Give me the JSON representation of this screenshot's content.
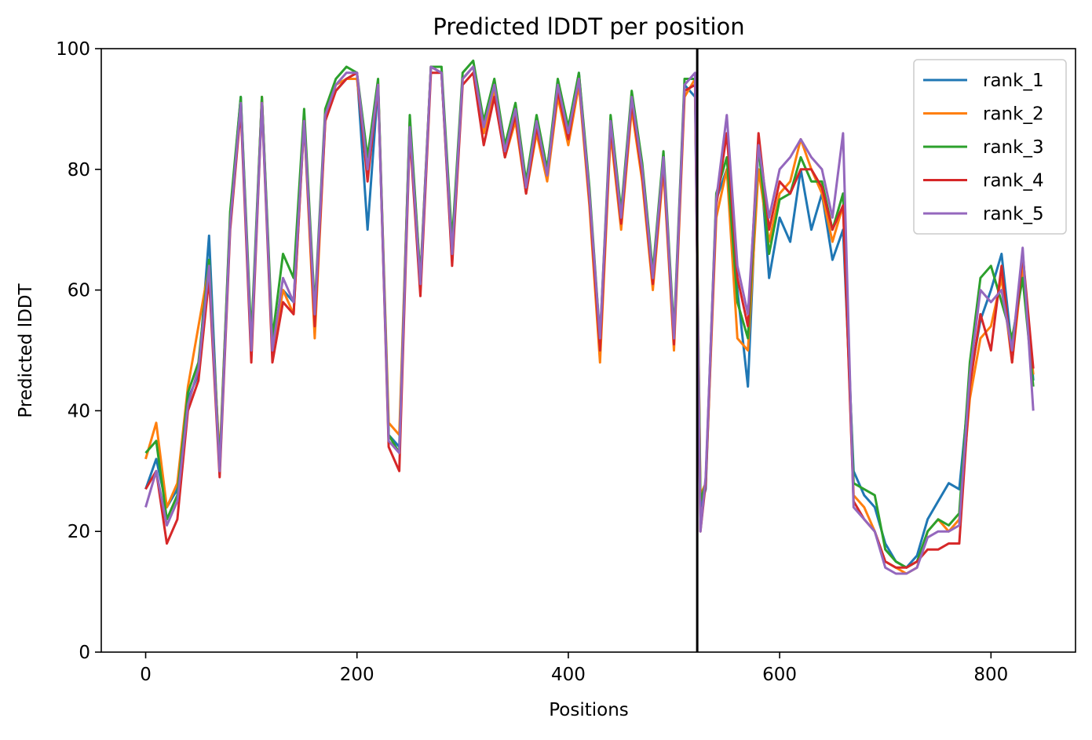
{
  "chart_data": {
    "type": "line",
    "title": "Predicted lDDT per position",
    "xlabel": "Positions",
    "ylabel": "Predicted lDDT",
    "xlim": [
      -42,
      880
    ],
    "ylim": [
      0,
      100
    ],
    "xticks": [
      0,
      200,
      400,
      600,
      800
    ],
    "yticks": [
      0,
      20,
      40,
      60,
      80,
      100
    ],
    "grid": false,
    "legend_position": "top-right",
    "vertical_line_x": 522,
    "x": [
      0,
      10,
      20,
      30,
      40,
      50,
      60,
      70,
      80,
      90,
      100,
      110,
      120,
      130,
      140,
      150,
      160,
      170,
      180,
      190,
      200,
      210,
      220,
      230,
      240,
      250,
      260,
      270,
      280,
      290,
      300,
      310,
      320,
      330,
      340,
      350,
      360,
      370,
      380,
      390,
      400,
      410,
      420,
      430,
      440,
      450,
      460,
      470,
      480,
      490,
      500,
      510,
      520,
      525,
      530,
      540,
      550,
      560,
      570,
      580,
      590,
      600,
      610,
      620,
      630,
      640,
      650,
      660,
      670,
      680,
      690,
      700,
      710,
      720,
      730,
      740,
      750,
      760,
      770,
      780,
      790,
      800,
      810,
      820,
      830,
      840
    ],
    "series": [
      {
        "name": "rank_1",
        "color": "#1f77b4",
        "values": [
          27,
          32,
          24,
          27,
          42,
          46,
          69,
          30,
          72,
          92,
          50,
          92,
          50,
          60,
          58,
          89,
          56,
          89,
          93,
          95,
          96,
          70,
          94,
          36,
          34,
          88,
          60,
          97,
          96,
          65,
          95,
          97,
          86,
          93,
          82,
          90,
          76,
          88,
          80,
          94,
          86,
          96,
          76,
          50,
          88,
          72,
          92,
          80,
          62,
          82,
          52,
          94,
          92,
          24,
          27,
          75,
          80,
          60,
          44,
          85,
          62,
          72,
          68,
          80,
          70,
          76,
          65,
          70,
          30,
          26,
          24,
          18,
          15,
          14,
          16,
          22,
          25,
          28,
          27,
          45,
          55,
          60,
          66,
          50,
          66,
          45
        ]
      },
      {
        "name": "rank_2",
        "color": "#ff7f0e",
        "values": [
          32,
          38,
          24,
          28,
          44,
          54,
          64,
          32,
          72,
          91,
          50,
          92,
          50,
          60,
          56,
          88,
          52,
          88,
          94,
          95,
          95,
          80,
          94,
          38,
          36,
          88,
          62,
          97,
          96,
          66,
          95,
          97,
          86,
          93,
          82,
          88,
          76,
          86,
          78,
          92,
          84,
          94,
          74,
          48,
          86,
          70,
          90,
          78,
          60,
          80,
          50,
          92,
          95,
          26,
          28,
          72,
          80,
          52,
          50,
          80,
          68,
          76,
          78,
          85,
          80,
          76,
          68,
          74,
          26,
          24,
          20,
          15,
          14,
          13,
          14,
          20,
          22,
          20,
          22,
          42,
          52,
          54,
          62,
          48,
          64,
          46
        ]
      },
      {
        "name": "rank_3",
        "color": "#2ca02c",
        "values": [
          33,
          35,
          22,
          26,
          43,
          48,
          65,
          31,
          73,
          92,
          52,
          92,
          52,
          66,
          62,
          90,
          57,
          90,
          95,
          97,
          96,
          82,
          95,
          36,
          33,
          89,
          62,
          97,
          97,
          68,
          96,
          98,
          88,
          95,
          84,
          91,
          78,
          89,
          80,
          95,
          87,
          96,
          77,
          52,
          89,
          73,
          93,
          81,
          63,
          83,
          53,
          95,
          95,
          25,
          28,
          76,
          82,
          58,
          52,
          84,
          66,
          75,
          76,
          82,
          78,
          78,
          70,
          76,
          28,
          27,
          26,
          17,
          15,
          14,
          15,
          20,
          22,
          21,
          23,
          48,
          62,
          64,
          58,
          52,
          62,
          44
        ]
      },
      {
        "name": "rank_4",
        "color": "#d62728",
        "values": [
          27,
          30,
          18,
          22,
          40,
          45,
          62,
          29,
          70,
          90,
          48,
          91,
          48,
          58,
          56,
          88,
          54,
          88,
          93,
          95,
          96,
          78,
          94,
          34,
          30,
          86,
          59,
          96,
          96,
          64,
          94,
          96,
          84,
          92,
          82,
          89,
          76,
          87,
          79,
          93,
          85,
          95,
          75,
          50,
          87,
          71,
          91,
          79,
          61,
          81,
          51,
          93,
          94,
          20,
          28,
          74,
          86,
          62,
          54,
          86,
          70,
          78,
          76,
          80,
          80,
          77,
          70,
          74,
          25,
          22,
          20,
          15,
          14,
          14,
          15,
          17,
          17,
          18,
          18,
          44,
          56,
          50,
          64,
          48,
          66,
          47
        ]
      },
      {
        "name": "rank_5",
        "color": "#9467bd",
        "values": [
          24,
          30,
          21,
          25,
          41,
          47,
          64,
          30,
          71,
          91,
          50,
          91,
          50,
          62,
          58,
          88,
          56,
          89,
          94,
          96,
          96,
          80,
          94,
          35,
          33,
          87,
          61,
          97,
          96,
          66,
          95,
          97,
          87,
          94,
          83,
          90,
          77,
          88,
          79,
          94,
          86,
          95,
          76,
          52,
          88,
          72,
          92,
          80,
          62,
          82,
          52,
          94,
          96,
          20,
          29,
          75,
          89,
          64,
          56,
          84,
          72,
          80,
          82,
          85,
          82,
          80,
          72,
          86,
          24,
          22,
          20,
          14,
          13,
          13,
          14,
          19,
          20,
          20,
          21,
          46,
          60,
          58,
          60,
          50,
          67,
          40
        ]
      }
    ]
  }
}
